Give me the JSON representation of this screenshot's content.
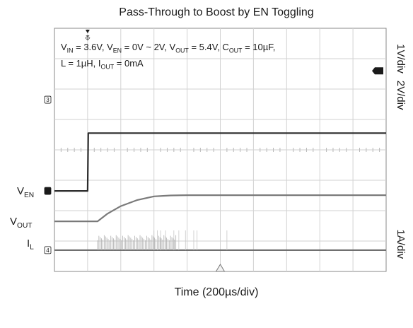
{
  "chart_data": {
    "type": "line",
    "title": "Pass-Through to Boost by EN Toggling",
    "xlabel": "Time (200µs/div)",
    "conditions": {
      "line1": [
        {
          "base": "V",
          "sub": "IN",
          "text": " = 3.6V, "
        },
        {
          "base": "V",
          "sub": "EN",
          "text": " = 0V ~ 2V, "
        },
        {
          "base": "V",
          "sub": "OUT",
          "text": " = 5.4V, "
        },
        {
          "base": "C",
          "sub": "OUT",
          "text": " = 10µF,"
        }
      ],
      "line2": [
        {
          "base": "",
          "sub": "",
          "text": "L = 1µH, "
        },
        {
          "base": "I",
          "sub": "OUT",
          "text": " = 0mA"
        }
      ]
    },
    "grid": {
      "x_divisions": 10,
      "y_divisions": 8,
      "grid": true
    },
    "channels": [
      {
        "base": "V",
        "sub": "EN",
        "marker": "1",
        "scale": "1V/div",
        "x": [
          0,
          1.0,
          1.02,
          10
        ],
        "y": [
          2.65,
          2.65,
          4.55,
          4.55
        ]
      },
      {
        "base": "V",
        "sub": "OUT",
        "marker": "2",
        "scale": "2V/div",
        "x": [
          0,
          1.3,
          1.6,
          2.0,
          2.5,
          3.0,
          3.5,
          4.0,
          10
        ],
        "y": [
          1.65,
          1.65,
          1.9,
          2.15,
          2.35,
          2.47,
          2.5,
          2.51,
          2.51
        ]
      },
      {
        "base": "",
        "sub": "",
        "marker": "3",
        "scale": "",
        "x": [],
        "y": []
      },
      {
        "base": "I",
        "sub": "L",
        "marker": "4",
        "scale": "1A/div",
        "x": [
          0,
          10
        ],
        "y": [
          0.7,
          0.7
        ]
      }
    ],
    "trigger_marker": "T",
    "trigger_level_marker": "TL"
  }
}
